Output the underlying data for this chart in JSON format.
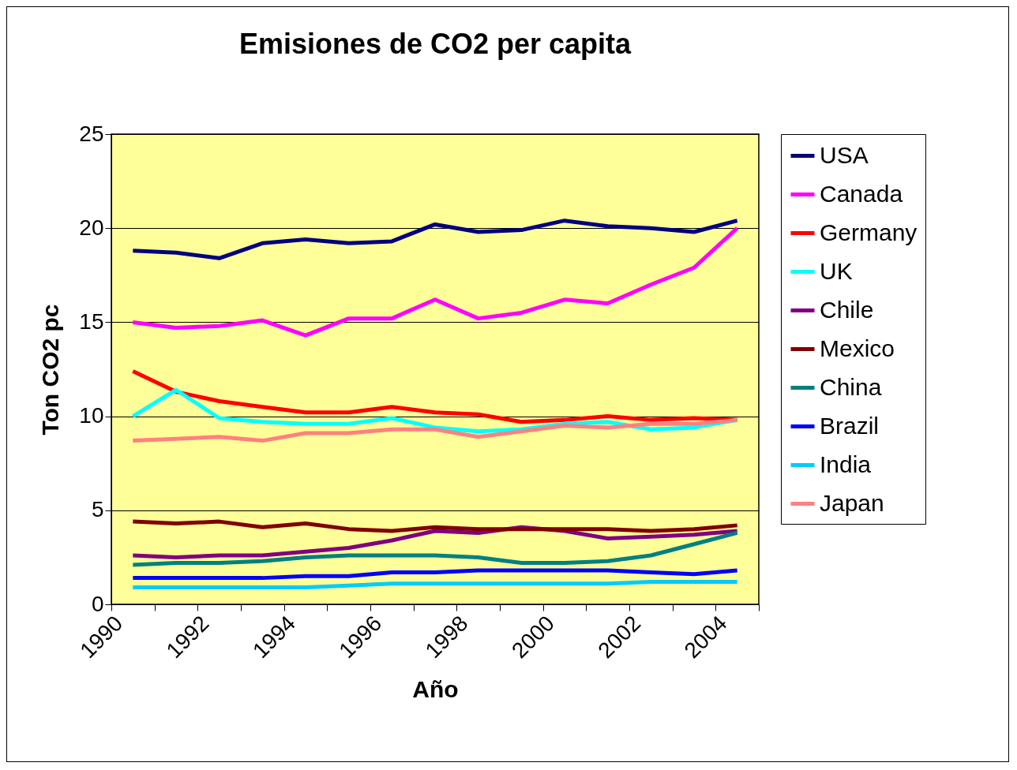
{
  "chart_data": {
    "type": "line",
    "title": "Emisiones de CO2 per capita",
    "xlabel": "Año",
    "ylabel": "Ton CO2 pc",
    "x": [
      1990.5,
      1991.5,
      1992.5,
      1993.5,
      1994.5,
      1995.5,
      1996.5,
      1997.5,
      1998.5,
      1999.5,
      2000.5,
      2001.5,
      2002.5,
      2003.5,
      2004.5
    ],
    "xlim": [
      1990,
      2005
    ],
    "xticks": [
      1990,
      {
        "value": 1991,
        "label": null
      },
      1992,
      {
        "value": 1993,
        "label": null
      },
      1994,
      {
        "value": 1995,
        "label": null
      },
      1996,
      {
        "value": 1997,
        "label": null
      },
      1998,
      {
        "value": 1999,
        "label": null
      },
      2000,
      {
        "value": 2001,
        "label": null
      },
      2002,
      {
        "value": 2003,
        "label": null
      },
      2004,
      {
        "value": 2005,
        "label": null
      }
    ],
    "ylim": [
      0,
      25
    ],
    "yticks": [
      0,
      5,
      10,
      15,
      20,
      25
    ],
    "grid": "y",
    "legend": "right",
    "marker": "none",
    "line_style": "solid",
    "series": [
      {
        "name": "USA",
        "color": "#000080",
        "values": [
          18.8,
          18.7,
          18.4,
          19.2,
          19.4,
          19.2,
          19.3,
          20.2,
          19.8,
          19.9,
          20.4,
          20.1,
          20.0,
          19.8,
          20.4
        ]
      },
      {
        "name": "Canada",
        "color": "#ff00ff",
        "values": [
          15.0,
          14.7,
          14.8,
          15.1,
          14.3,
          15.2,
          15.2,
          16.2,
          15.2,
          15.5,
          16.2,
          16.0,
          17.0,
          17.9,
          20.0
        ]
      },
      {
        "name": "Germany",
        "color": "#ff0000",
        "values": [
          12.4,
          11.3,
          10.8,
          10.5,
          10.2,
          10.2,
          10.5,
          10.2,
          10.1,
          9.7,
          9.8,
          10.0,
          9.8,
          9.9,
          9.8
        ]
      },
      {
        "name": "UK",
        "color": "#00ffff",
        "values": [
          10.0,
          11.4,
          9.9,
          9.7,
          9.6,
          9.6,
          9.9,
          9.4,
          9.2,
          9.3,
          9.6,
          9.7,
          9.3,
          9.4,
          9.8
        ]
      },
      {
        "name": "Chile",
        "color": "#800080",
        "values": [
          2.6,
          2.5,
          2.6,
          2.6,
          2.8,
          3.0,
          3.4,
          3.9,
          3.8,
          4.1,
          3.9,
          3.5,
          3.6,
          3.7,
          3.9
        ]
      },
      {
        "name": "Mexico",
        "color": "#800000",
        "values": [
          4.4,
          4.3,
          4.4,
          4.1,
          4.3,
          4.0,
          3.9,
          4.1,
          4.0,
          4.0,
          4.0,
          4.0,
          3.9,
          4.0,
          4.2
        ]
      },
      {
        "name": "China",
        "color": "#008080",
        "values": [
          2.1,
          2.2,
          2.2,
          2.3,
          2.5,
          2.6,
          2.6,
          2.6,
          2.5,
          2.2,
          2.2,
          2.3,
          2.6,
          3.2,
          3.8
        ]
      },
      {
        "name": "Brazil",
        "color": "#0000ff",
        "values": [
          1.4,
          1.4,
          1.4,
          1.4,
          1.5,
          1.5,
          1.7,
          1.7,
          1.8,
          1.8,
          1.8,
          1.8,
          1.7,
          1.6,
          1.8
        ]
      },
      {
        "name": "India",
        "color": "#00ccff",
        "values": [
          0.9,
          0.9,
          0.9,
          0.9,
          0.9,
          1.0,
          1.1,
          1.1,
          1.1,
          1.1,
          1.1,
          1.1,
          1.2,
          1.2,
          1.2
        ]
      },
      {
        "name": "Japan",
        "color": "#ff8080",
        "values": [
          8.7,
          8.8,
          8.9,
          8.7,
          9.1,
          9.1,
          9.3,
          9.3,
          8.9,
          9.2,
          9.5,
          9.4,
          9.6,
          9.6,
          9.8
        ]
      }
    ]
  }
}
